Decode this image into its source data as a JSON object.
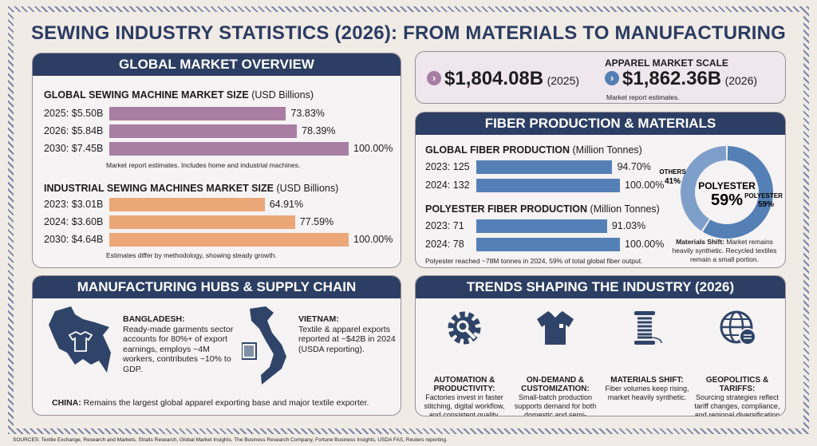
{
  "title": "SEWING INDUSTRY STATISTICS (2026): FROM MATERIALS TO MANUFACTURING",
  "colors": {
    "navy": "#2c3e63",
    "purple": "#a87ea3",
    "orange": "#eba777",
    "blue": "#5580b6",
    "donut_light": "#7f9fcb"
  },
  "market": {
    "header": "GLOBAL MARKET OVERVIEW",
    "sewing_title": "GLOBAL SEWING MACHINE MARKET SIZE",
    "sewing_unit": "(USD Billions)",
    "sewing_note": "Market report estimates. Includes home and industrial machines.",
    "industrial_title": "INDUSTRIAL SEWING MACHINES MARKET SIZE",
    "industrial_unit": "(USD Billions)",
    "industrial_note": "Estimates differ by methodology, showing steady growth."
  },
  "apparel": {
    "title": "APPAREL MARKET SCALE",
    "v1": "$1,804.08B",
    "y1": "(2025)",
    "v2": "$1,862.36B",
    "y2": "(2026)",
    "note": "Market report estimates."
  },
  "fiber": {
    "header": "FIBER PRODUCTION & MATERIALS",
    "global_title": "GLOBAL FIBER PRODUCTION",
    "global_unit": "(Million Tonnes)",
    "poly_title": "POLYESTER FIBER PRODUCTION",
    "poly_unit": "(Million Tonnes)",
    "note": "Polyester reached ~78M tonnes in 2024, 59% of total global fiber output.",
    "donut_center_label": "POLYESTER",
    "donut_center_value": "59%",
    "donut_others_label": "OTHERS",
    "donut_others_value": "41%",
    "donut_poly_label": "POLYESTER",
    "donut_poly_value": "59%",
    "shift_bold": "Materials Shift:",
    "shift_text": " Market remains heavily synthetic. Recycled textiles remain a small portion."
  },
  "hubs": {
    "header": "MANUFACTURING HUBS & SUPPLY CHAIN",
    "bd_title": "BANGLADESH:",
    "bd_text": "Ready-made garments sector accounts for 80%+ of export earnings, employs ~4M workers, contributes ~10% to GDP.",
    "vn_title": "VIETNAM:",
    "vn_text": "Textile & apparel exports reported at ~$42B in 2024 (USDA reporting).",
    "cn_title": "CHINA:",
    "cn_text": " Remains the largest global apparel exporting base and major textile exporter."
  },
  "trends": {
    "header": "TRENDS SHAPING THE INDUSTRY (2026)",
    "items": [
      {
        "title": "AUTOMATION & PRODUCTIVITY:",
        "text": "Factories invest in faster stitching, digital workflow, and consistent quality.",
        "icon": "gear-wrench-icon"
      },
      {
        "title": "ON-DEMAND & CUSTOMIZATION:",
        "text": "Small-batch production supports demand for both domestic and semi-industrial machines.",
        "icon": "shirt-icon"
      },
      {
        "title": "MATERIALS SHIFT:",
        "text": "Fiber volumes keep rising, market heavily synthetic.",
        "icon": "thread-spool-icon"
      },
      {
        "title": "GEOPOLITICS & TARIFFS:",
        "text": "Sourcing strategies reflect tariff changes, compliance, and regional diversification risks.",
        "icon": "globe-exchange-icon"
      }
    ]
  },
  "sources": "SOURCES: Textile Exchange, Research and Markets, Straits Research, Global Market Insights, The Business Research Company, Fortune Business Insights, USDA FAS, Reuters reporting.",
  "chart_data": [
    {
      "type": "bar",
      "orientation": "horizontal",
      "title": "GLOBAL SEWING MACHINE MARKET SIZE (USD Billions)",
      "categories": [
        "2025: $5.50B",
        "2026: $5.84B",
        "2030: $7.45B"
      ],
      "values": [
        73.83,
        78.39,
        100
      ],
      "value_labels": [
        "73.83%",
        "78.39%",
        "100.00%"
      ],
      "color": "#a87ea3"
    },
    {
      "type": "bar",
      "orientation": "horizontal",
      "title": "INDUSTRIAL SEWING MACHINES MARKET SIZE (USD Billions)",
      "categories": [
        "2023: $3.01B",
        "2024: $3.60B",
        "2030: $4.64B"
      ],
      "values": [
        64.91,
        77.59,
        100
      ],
      "value_labels": [
        "64.91%",
        "77.59%",
        "100.00%"
      ],
      "color": "#eba777"
    },
    {
      "type": "bar",
      "orientation": "horizontal",
      "title": "GLOBAL FIBER PRODUCTION (Million Tonnes)",
      "categories": [
        "2023: 125",
        "2024: 132"
      ],
      "values": [
        94.7,
        100
      ],
      "value_labels": [
        "94.70%",
        "100.00%"
      ],
      "color": "#5580b6"
    },
    {
      "type": "bar",
      "orientation": "horizontal",
      "title": "POLYESTER FIBER PRODUCTION (Million Tonnes)",
      "categories": [
        "2023: 71",
        "2024: 78"
      ],
      "values": [
        91.03,
        100
      ],
      "value_labels": [
        "91.03%",
        "100.00%"
      ],
      "color": "#5580b6"
    },
    {
      "type": "pie",
      "donut": true,
      "labels": [
        "POLYESTER",
        "OTHERS"
      ],
      "values": [
        59,
        41
      ],
      "colors": [
        "#5580b6",
        "#7f9fcb"
      ]
    }
  ]
}
